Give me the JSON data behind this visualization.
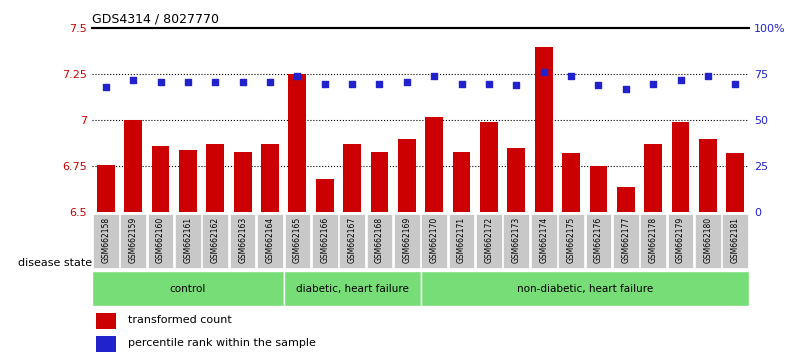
{
  "title": "GDS4314 / 8027770",
  "samples": [
    "GSM662158",
    "GSM662159",
    "GSM662160",
    "GSM662161",
    "GSM662162",
    "GSM662163",
    "GSM662164",
    "GSM662165",
    "GSM662166",
    "GSM662167",
    "GSM662168",
    "GSM662169",
    "GSM662170",
    "GSM662171",
    "GSM662172",
    "GSM662173",
    "GSM662174",
    "GSM662175",
    "GSM662176",
    "GSM662177",
    "GSM662178",
    "GSM662179",
    "GSM662180",
    "GSM662181"
  ],
  "bar_values": [
    6.76,
    7.0,
    6.86,
    6.84,
    6.87,
    6.83,
    6.87,
    7.25,
    6.68,
    6.87,
    6.83,
    6.9,
    7.02,
    6.83,
    6.99,
    6.85,
    7.4,
    6.82,
    6.75,
    6.64,
    6.87,
    6.99,
    6.9,
    6.82
  ],
  "dot_values": [
    68,
    72,
    71,
    71,
    71,
    71,
    71,
    74,
    70,
    70,
    70,
    71,
    74,
    70,
    70,
    69,
    76,
    74,
    69,
    67,
    70,
    72,
    74,
    70
  ],
  "ylim_left": [
    6.5,
    7.5
  ],
  "ylim_right": [
    0,
    100
  ],
  "yticks_left": [
    6.5,
    6.75,
    7.0,
    7.25,
    7.5
  ],
  "ytick_labels_left": [
    "6.5",
    "6.75",
    "7",
    "7.25",
    "7.5"
  ],
  "yticks_right": [
    0,
    25,
    50,
    75,
    100
  ],
  "ytick_labels_right": [
    "0",
    "25",
    "50",
    "75",
    "100%"
  ],
  "bar_color": "#cc0000",
  "dot_color": "#2222cc",
  "group_boundaries": [
    0,
    7,
    12,
    24
  ],
  "group_labels": [
    "control",
    "diabetic, heart failure",
    "non-diabetic, heart failure"
  ],
  "group_color": "#77dd77",
  "disease_state_label": "disease state",
  "legend_bar_label": "transformed count",
  "legend_dot_label": "percentile rank within the sample",
  "bg_color": "#ffffff",
  "xtick_bg": "#c8c8c8",
  "grid_color": "#000000"
}
